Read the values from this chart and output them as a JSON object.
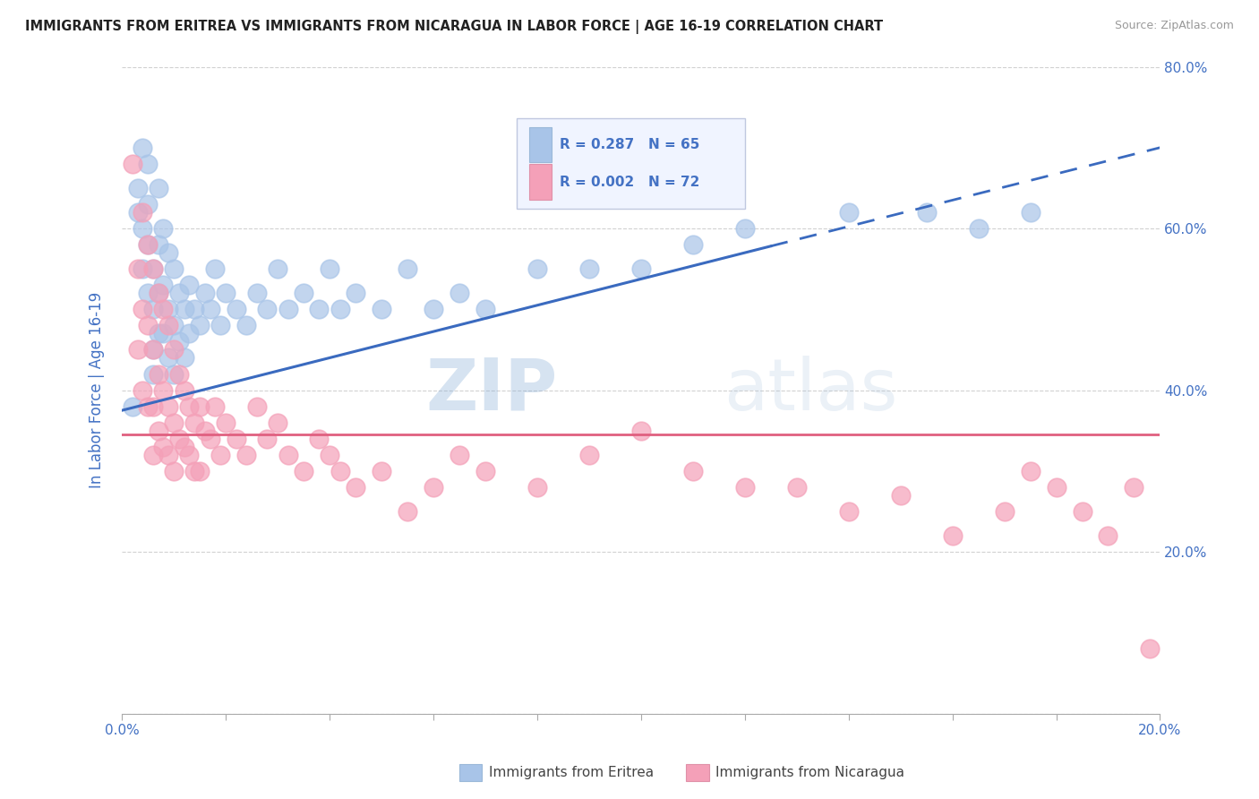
{
  "title": "IMMIGRANTS FROM ERITREA VS IMMIGRANTS FROM NICARAGUA IN LABOR FORCE | AGE 16-19 CORRELATION CHART",
  "source": "Source: ZipAtlas.com",
  "ylabel": "In Labor Force | Age 16-19",
  "xlim": [
    0.0,
    0.2
  ],
  "ylim": [
    0.0,
    0.8
  ],
  "xticks": [
    0.0,
    0.02,
    0.04,
    0.06,
    0.08,
    0.1,
    0.12,
    0.14,
    0.16,
    0.18,
    0.2
  ],
  "yticks": [
    0.0,
    0.2,
    0.4,
    0.6,
    0.8
  ],
  "xticklabels": [
    "0.0%",
    "",
    "",
    "",
    "",
    "",
    "",
    "",
    "",
    "",
    "20.0%"
  ],
  "ytick_right_labels": [
    "",
    "20.0%",
    "40.0%",
    "60.0%",
    "80.0%"
  ],
  "legend_r1": "R = 0.287",
  "legend_n1": "N = 65",
  "legend_r2": "R = 0.002",
  "legend_n2": "N = 72",
  "color_eritrea": "#a8c4e8",
  "color_nicaragua": "#f4a0b8",
  "color_trend_eritrea": "#3a6abf",
  "color_trend_nicaragua": "#e06080",
  "color_tick_label": "#4472c4",
  "eritrea_x": [
    0.002,
    0.003,
    0.003,
    0.004,
    0.004,
    0.004,
    0.005,
    0.005,
    0.005,
    0.005,
    0.006,
    0.006,
    0.006,
    0.006,
    0.007,
    0.007,
    0.007,
    0.007,
    0.008,
    0.008,
    0.008,
    0.009,
    0.009,
    0.009,
    0.01,
    0.01,
    0.01,
    0.011,
    0.011,
    0.012,
    0.012,
    0.013,
    0.013,
    0.014,
    0.015,
    0.016,
    0.017,
    0.018,
    0.019,
    0.02,
    0.022,
    0.024,
    0.026,
    0.028,
    0.03,
    0.032,
    0.035,
    0.038,
    0.04,
    0.042,
    0.045,
    0.05,
    0.055,
    0.06,
    0.065,
    0.07,
    0.08,
    0.09,
    0.1,
    0.11,
    0.12,
    0.14,
    0.155,
    0.165,
    0.175
  ],
  "eritrea_y": [
    0.38,
    0.65,
    0.62,
    0.6,
    0.55,
    0.7,
    0.63,
    0.58,
    0.52,
    0.68,
    0.55,
    0.5,
    0.45,
    0.42,
    0.65,
    0.58,
    0.52,
    0.47,
    0.6,
    0.53,
    0.47,
    0.57,
    0.5,
    0.44,
    0.55,
    0.48,
    0.42,
    0.52,
    0.46,
    0.5,
    0.44,
    0.53,
    0.47,
    0.5,
    0.48,
    0.52,
    0.5,
    0.55,
    0.48,
    0.52,
    0.5,
    0.48,
    0.52,
    0.5,
    0.55,
    0.5,
    0.52,
    0.5,
    0.55,
    0.5,
    0.52,
    0.5,
    0.55,
    0.5,
    0.52,
    0.5,
    0.55,
    0.55,
    0.55,
    0.58,
    0.6,
    0.62,
    0.62,
    0.6,
    0.62
  ],
  "nicaragua_x": [
    0.002,
    0.003,
    0.003,
    0.004,
    0.004,
    0.004,
    0.005,
    0.005,
    0.005,
    0.006,
    0.006,
    0.006,
    0.006,
    0.007,
    0.007,
    0.007,
    0.008,
    0.008,
    0.008,
    0.009,
    0.009,
    0.009,
    0.01,
    0.01,
    0.01,
    0.011,
    0.011,
    0.012,
    0.012,
    0.013,
    0.013,
    0.014,
    0.014,
    0.015,
    0.015,
    0.016,
    0.017,
    0.018,
    0.019,
    0.02,
    0.022,
    0.024,
    0.026,
    0.028,
    0.03,
    0.032,
    0.035,
    0.038,
    0.04,
    0.042,
    0.045,
    0.05,
    0.055,
    0.06,
    0.065,
    0.07,
    0.08,
    0.09,
    0.1,
    0.11,
    0.12,
    0.13,
    0.14,
    0.15,
    0.16,
    0.17,
    0.175,
    0.18,
    0.185,
    0.19,
    0.195,
    0.198
  ],
  "nicaragua_y": [
    0.68,
    0.55,
    0.45,
    0.62,
    0.5,
    0.4,
    0.58,
    0.48,
    0.38,
    0.55,
    0.45,
    0.38,
    0.32,
    0.52,
    0.42,
    0.35,
    0.5,
    0.4,
    0.33,
    0.48,
    0.38,
    0.32,
    0.45,
    0.36,
    0.3,
    0.42,
    0.34,
    0.4,
    0.33,
    0.38,
    0.32,
    0.36,
    0.3,
    0.38,
    0.3,
    0.35,
    0.34,
    0.38,
    0.32,
    0.36,
    0.34,
    0.32,
    0.38,
    0.34,
    0.36,
    0.32,
    0.3,
    0.34,
    0.32,
    0.3,
    0.28,
    0.3,
    0.25,
    0.28,
    0.32,
    0.3,
    0.28,
    0.32,
    0.35,
    0.3,
    0.28,
    0.28,
    0.25,
    0.27,
    0.22,
    0.25,
    0.3,
    0.28,
    0.25,
    0.22,
    0.28,
    0.08
  ],
  "trend_x0": 0.0,
  "trend_x1": 0.2,
  "trend_eritrea_y0": 0.375,
  "trend_eritrea_y1": 0.7,
  "trend_eritrea_solid_end": 0.125,
  "trend_nicaragua_y": 0.345,
  "watermark_zip": "ZIP",
  "watermark_atlas": "atlas",
  "background_color": "#ffffff",
  "grid_color": "#cccccc",
  "title_color": "#222222",
  "legend_box_facecolor": "#f0f4ff",
  "legend_box_edgecolor": "#c0c8e0"
}
